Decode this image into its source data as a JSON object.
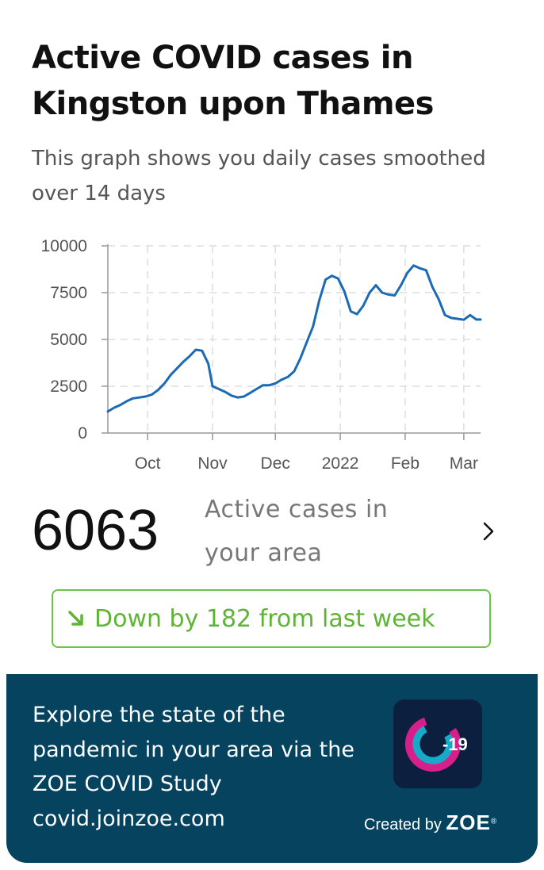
{
  "header": {
    "title": "Active COVID cases in Kingston upon Thames",
    "subtitle": "This graph shows you daily cases smoothed over 14 days"
  },
  "chart_data": {
    "type": "line",
    "title": "",
    "xlabel": "",
    "ylabel": "",
    "ylim": [
      0,
      10000
    ],
    "yticks": [
      0,
      2500,
      5000,
      7500,
      10000
    ],
    "ytick_labels": [
      "0",
      "2500",
      "5000",
      "7500",
      "10000"
    ],
    "x_tick_labels": [
      "Oct",
      "Nov",
      "Dec",
      "2022",
      "Feb",
      "Mar"
    ],
    "x_tick_dates": [
      "2021-10-01",
      "2021-11-01",
      "2021-12-01",
      "2022-01-01",
      "2022-02-01",
      "2022-03-01"
    ],
    "xlim": [
      "2021-09-12",
      "2022-03-09"
    ],
    "grid": "horizontal dashed",
    "line_color": "#1a6ab5",
    "series": [
      {
        "x": [
          "2021-09-12",
          "2021-09-15",
          "2021-09-18",
          "2021-09-21",
          "2021-09-24",
          "2021-09-27",
          "2021-09-30",
          "2021-10-03",
          "2021-10-06",
          "2021-10-09",
          "2021-10-12",
          "2021-10-15",
          "2021-10-18",
          "2021-10-21",
          "2021-10-24",
          "2021-10-27",
          "2021-10-30",
          "2021-11-01",
          "2021-11-04",
          "2021-11-07",
          "2021-11-10",
          "2021-11-13",
          "2021-11-16",
          "2021-11-19",
          "2021-11-22",
          "2021-11-25",
          "2021-11-28",
          "2021-12-01",
          "2021-12-04",
          "2021-12-07",
          "2021-12-10",
          "2021-12-13",
          "2021-12-16",
          "2021-12-19",
          "2021-12-22",
          "2021-12-25",
          "2021-12-28",
          "2021-12-31",
          "2022-01-03",
          "2022-01-06",
          "2022-01-09",
          "2022-01-12",
          "2022-01-15",
          "2022-01-18",
          "2022-01-21",
          "2022-01-24",
          "2022-01-27",
          "2022-01-30",
          "2022-02-02",
          "2022-02-05",
          "2022-02-08",
          "2022-02-11",
          "2022-02-14",
          "2022-02-17",
          "2022-02-20",
          "2022-02-23",
          "2022-02-26",
          "2022-03-01",
          "2022-03-04",
          "2022-03-07",
          "2022-03-09"
        ],
        "values": [
          1150,
          1350,
          1500,
          1700,
          1850,
          1900,
          1950,
          2050,
          2300,
          2650,
          3100,
          3450,
          3800,
          4100,
          4450,
          4400,
          3700,
          2500,
          2350,
          2200,
          2000,
          1900,
          1950,
          2150,
          2350,
          2550,
          2550,
          2650,
          2850,
          3000,
          3300,
          4000,
          4850,
          5700,
          7100,
          8200,
          8400,
          8250,
          7550,
          6500,
          6350,
          6800,
          7500,
          7900,
          7500,
          7400,
          7350,
          7900,
          8550,
          8950,
          8800,
          8700,
          7800,
          7150,
          6300,
          6150,
          6100,
          6050,
          6300,
          6063,
          6063
        ]
      }
    ]
  },
  "stats": {
    "active_cases": "6063",
    "active_cases_label": "Active cases in your area",
    "trend_text": "Down by 182 from last week",
    "trend_direction": "down",
    "trend_color": "#5db533"
  },
  "footer": {
    "text": "Explore the state of the pandemic in your area via the ZOE COVID Study covid.joinzoe.com",
    "app_icon": "c-19-app-icon",
    "app_icon_text": "-19",
    "created_by_label": "Created by",
    "brand": "ZOE",
    "brand_mark": "®",
    "background": "#05435f"
  }
}
